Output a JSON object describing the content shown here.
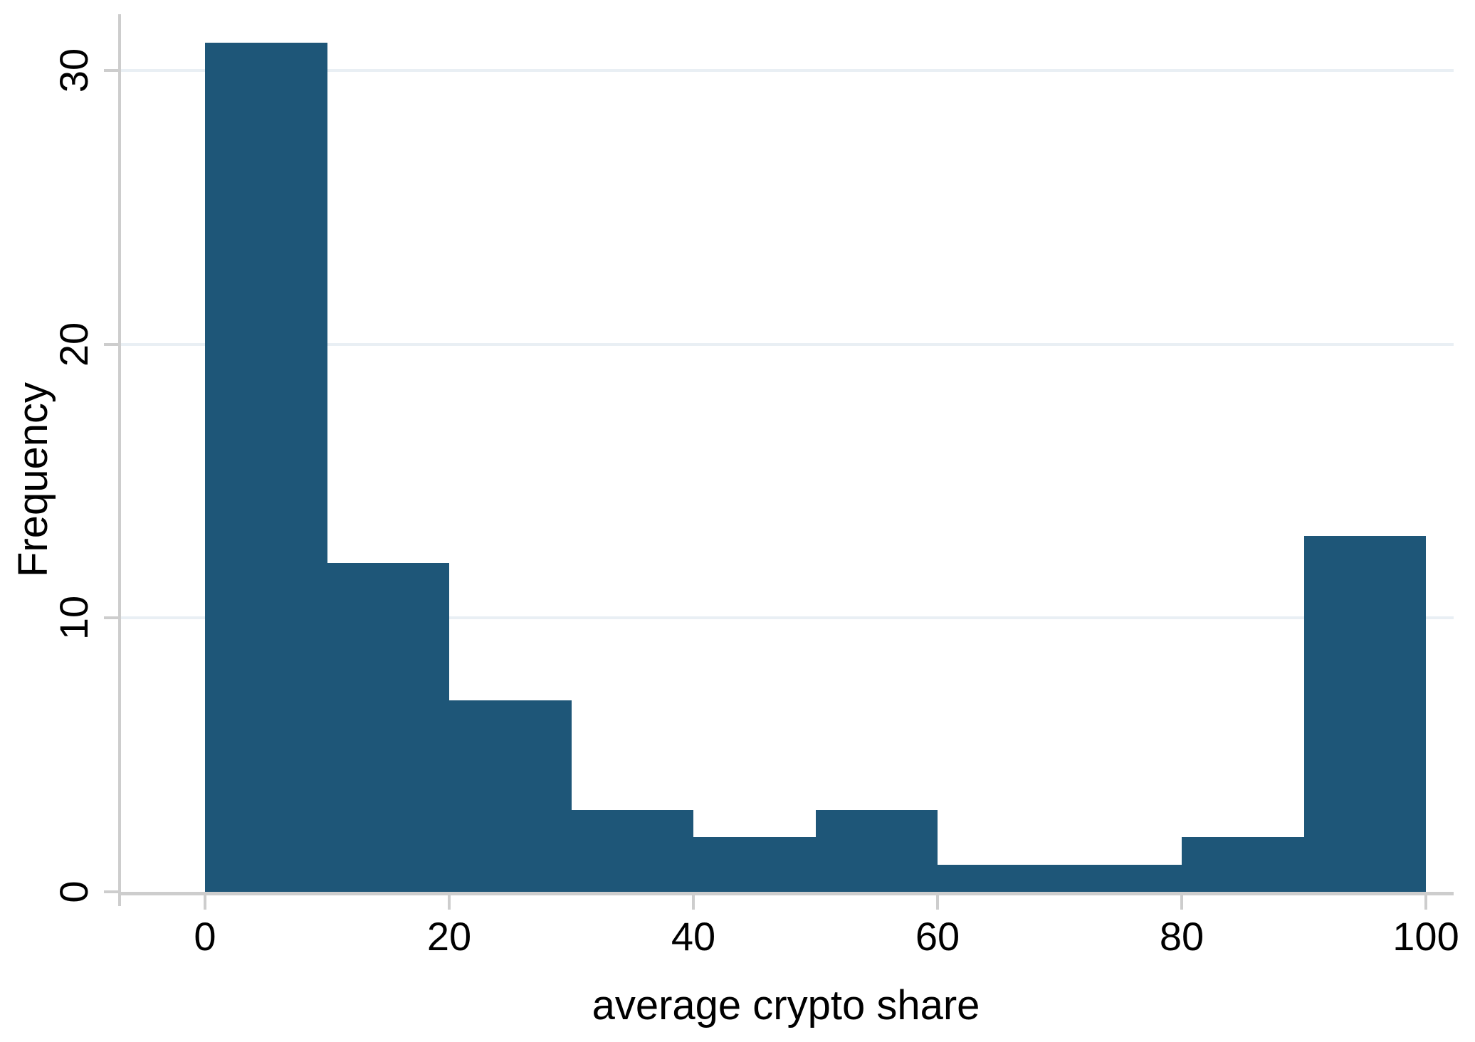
{
  "figure": {
    "background": "#ffffff"
  },
  "chart_data": {
    "type": "bar",
    "subtype": "histogram",
    "title": "",
    "xlabel": "average crypto share",
    "ylabel": "Frequency",
    "bin_edges": [
      0,
      10,
      20,
      30,
      40,
      50,
      60,
      70,
      80,
      90,
      100
    ],
    "bin_width": 10,
    "frequencies": [
      31,
      12,
      7,
      3,
      2,
      3,
      1,
      1,
      2,
      13
    ],
    "x_tick_values": [
      0,
      20,
      40,
      60,
      80,
      100
    ],
    "x_tick_labels": [
      "0",
      "20",
      "40",
      "60",
      "80",
      "100"
    ],
    "y_tick_values": [
      0,
      10,
      20,
      30
    ],
    "y_tick_labels": [
      "0",
      "10",
      "20",
      "30"
    ],
    "xlim": [
      0,
      100
    ],
    "ylim": [
      0,
      32
    ],
    "grid": "horizontal-gridlines-on",
    "y_tick_label_angle_deg": 90,
    "legend": "none",
    "colors": {
      "bar_fill": "#1e5678",
      "gridline": "#e9eff4",
      "axis_line": "#cdcdcd",
      "text": "#000000",
      "background": "#ffffff"
    }
  }
}
